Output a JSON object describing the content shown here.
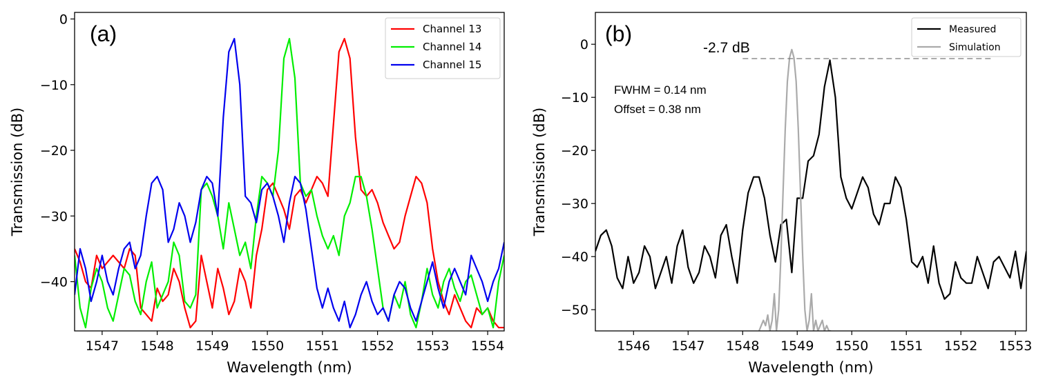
{
  "chart_data": [
    {
      "type": "line",
      "panel_label": "(a)",
      "xlabel": "Wavelength (nm)",
      "ylabel": "Transmission (dB)",
      "xlim": [
        1546.5,
        1554.3
      ],
      "ylim": [
        -47.5,
        1
      ],
      "xticks": [
        1547,
        1548,
        1549,
        1550,
        1551,
        1552,
        1553,
        1554
      ],
      "xtick_labels": [
        "1547",
        "1548",
        "1549",
        "1550",
        "1551",
        "1552",
        "1553",
        "1554"
      ],
      "yticks": [
        0,
        -10,
        -20,
        -30,
        -40
      ],
      "ytick_labels": [
        "0",
        "−10",
        "−20",
        "−30",
        "−40"
      ],
      "legend_position": "top-right",
      "series": [
        {
          "name": "Channel 13",
          "color": "#ff0000",
          "x": [
            1546.5,
            1546.6,
            1546.7,
            1546.8,
            1546.9,
            1547.0,
            1547.1,
            1547.2,
            1547.3,
            1547.4,
            1547.5,
            1547.6,
            1547.7,
            1547.8,
            1547.9,
            1548.0,
            1548.1,
            1548.2,
            1548.3,
            1548.4,
            1548.5,
            1548.6,
            1548.7,
            1548.8,
            1548.9,
            1549.0,
            1549.1,
            1549.2,
            1549.3,
            1549.4,
            1549.5,
            1549.6,
            1549.7,
            1549.8,
            1549.9,
            1550.0,
            1550.1,
            1550.2,
            1550.3,
            1550.4,
            1550.5,
            1550.6,
            1550.7,
            1550.8,
            1550.9,
            1551.0,
            1551.1,
            1551.2,
            1551.3,
            1551.4,
            1551.5,
            1551.6,
            1551.7,
            1551.8,
            1551.9,
            1552.0,
            1552.1,
            1552.2,
            1552.3,
            1552.4,
            1552.5,
            1552.6,
            1552.7,
            1552.8,
            1552.9,
            1553.0,
            1553.1,
            1553.2,
            1553.3,
            1553.4,
            1553.5,
            1553.6,
            1553.7,
            1553.8,
            1553.9,
            1554.0,
            1554.1,
            1554.2,
            1554.3
          ],
          "values": [
            -35,
            -37,
            -40,
            -41,
            -36,
            -38,
            -37,
            -36,
            -37,
            -38,
            -35,
            -36,
            -44,
            -45,
            -46,
            -41,
            -43,
            -42,
            -38,
            -40,
            -44,
            -47,
            -46,
            -36,
            -40,
            -44,
            -38,
            -41,
            -45,
            -43,
            -38,
            -40,
            -44,
            -36,
            -32,
            -26,
            -25,
            -27,
            -29,
            -32,
            -27,
            -26,
            -28,
            -26,
            -24,
            -25,
            -27,
            -16,
            -5,
            -3,
            -6,
            -18,
            -26,
            -27,
            -26,
            -28,
            -31,
            -33,
            -35,
            -34,
            -30,
            -27,
            -24,
            -25,
            -28,
            -35,
            -40,
            -43,
            -45,
            -42,
            -44,
            -46,
            -47,
            -44,
            -45,
            -44,
            -46,
            -47,
            -47
          ]
        },
        {
          "name": "Channel 14",
          "color": "#00ee00",
          "x": [
            1546.5,
            1546.6,
            1546.7,
            1546.8,
            1546.9,
            1547.0,
            1547.1,
            1547.2,
            1547.3,
            1547.4,
            1547.5,
            1547.6,
            1547.7,
            1547.8,
            1547.9,
            1548.0,
            1548.1,
            1548.2,
            1548.3,
            1548.4,
            1548.5,
            1548.6,
            1548.7,
            1548.8,
            1548.9,
            1549.0,
            1549.1,
            1549.2,
            1549.3,
            1549.4,
            1549.5,
            1549.6,
            1549.7,
            1549.8,
            1549.9,
            1550.0,
            1550.1,
            1550.2,
            1550.3,
            1550.4,
            1550.5,
            1550.6,
            1550.7,
            1550.8,
            1550.9,
            1551.0,
            1551.1,
            1551.2,
            1551.3,
            1551.4,
            1551.5,
            1551.6,
            1551.7,
            1551.8,
            1551.9,
            1552.0,
            1552.1,
            1552.2,
            1552.3,
            1552.4,
            1552.5,
            1552.6,
            1552.7,
            1552.8,
            1552.9,
            1553.0,
            1553.1,
            1553.2,
            1553.3,
            1553.4,
            1553.5,
            1553.6,
            1553.7,
            1553.8,
            1553.9,
            1554.0,
            1554.1,
            1554.2,
            1554.3
          ],
          "values": [
            -36,
            -44,
            -47,
            -41,
            -38,
            -40,
            -44,
            -46,
            -42,
            -38,
            -39,
            -43,
            -45,
            -40,
            -37,
            -44,
            -42,
            -40,
            -34,
            -36,
            -43,
            -44,
            -42,
            -26,
            -25,
            -27,
            -30,
            -35,
            -28,
            -32,
            -36,
            -34,
            -38,
            -30,
            -24,
            -25,
            -27,
            -20,
            -6,
            -3,
            -9,
            -25,
            -27,
            -26,
            -30,
            -33,
            -35,
            -33,
            -36,
            -30,
            -28,
            -24,
            -24,
            -27,
            -32,
            -38,
            -44,
            -46,
            -42,
            -44,
            -40,
            -45,
            -47,
            -43,
            -38,
            -42,
            -44,
            -40,
            -38,
            -41,
            -43,
            -40,
            -39,
            -42,
            -45,
            -44,
            -47,
            -40,
            -36
          ]
        },
        {
          "name": "Channel 15",
          "color": "#0000ee",
          "x": [
            1546.5,
            1546.6,
            1546.7,
            1546.8,
            1546.9,
            1547.0,
            1547.1,
            1547.2,
            1547.3,
            1547.4,
            1547.5,
            1547.6,
            1547.7,
            1547.8,
            1547.9,
            1548.0,
            1548.1,
            1548.2,
            1548.3,
            1548.4,
            1548.5,
            1548.6,
            1548.7,
            1548.8,
            1548.9,
            1549.0,
            1549.1,
            1549.2,
            1549.3,
            1549.4,
            1549.5,
            1549.6,
            1549.7,
            1549.8,
            1549.9,
            1550.0,
            1550.1,
            1550.2,
            1550.3,
            1550.4,
            1550.5,
            1550.6,
            1550.7,
            1550.8,
            1550.9,
            1551.0,
            1551.1,
            1551.2,
            1551.3,
            1551.4,
            1551.5,
            1551.6,
            1551.7,
            1551.8,
            1551.9,
            1552.0,
            1552.1,
            1552.2,
            1552.3,
            1552.4,
            1552.5,
            1552.6,
            1552.7,
            1552.8,
            1552.9,
            1553.0,
            1553.1,
            1553.2,
            1553.3,
            1553.4,
            1553.5,
            1553.6,
            1553.7,
            1553.8,
            1553.9,
            1554.0,
            1554.1,
            1554.2,
            1554.3
          ],
          "values": [
            -42,
            -35,
            -38,
            -43,
            -40,
            -36,
            -40,
            -42,
            -38,
            -35,
            -34,
            -38,
            -36,
            -30,
            -25,
            -24,
            -26,
            -34,
            -32,
            -28,
            -30,
            -34,
            -31,
            -26,
            -24,
            -25,
            -30,
            -15,
            -5,
            -3,
            -10,
            -27,
            -28,
            -31,
            -26,
            -25,
            -27,
            -30,
            -34,
            -28,
            -24,
            -25,
            -29,
            -35,
            -41,
            -44,
            -41,
            -44,
            -46,
            -43,
            -47,
            -45,
            -42,
            -40,
            -43,
            -45,
            -44,
            -46,
            -42,
            -40,
            -41,
            -44,
            -46,
            -43,
            -40,
            -37,
            -41,
            -44,
            -40,
            -38,
            -40,
            -42,
            -36,
            -38,
            -40,
            -43,
            -40,
            -38,
            -34
          ]
        }
      ]
    },
    {
      "type": "line",
      "panel_label": "(b)",
      "xlabel": "Wavelength (nm)",
      "ylabel": "Transmission (dB)",
      "xlim": [
        1545.3,
        1553.2
      ],
      "ylim": [
        -54,
        6
      ],
      "xticks": [
        1546,
        1547,
        1548,
        1549,
        1550,
        1551,
        1552,
        1553
      ],
      "xtick_labels": [
        "1546",
        "1547",
        "1548",
        "1549",
        "1550",
        "1551",
        "1552",
        "1553"
      ],
      "yticks": [
        0,
        -10,
        -20,
        -30,
        -40,
        -50
      ],
      "ytick_labels": [
        "0",
        "−10",
        "−20",
        "−30",
        "−40",
        "−50"
      ],
      "legend_position": "top-right",
      "annotations": {
        "peak_label": "-2.7 dB",
        "peak_level": -2.7,
        "fwhm_text": "FWHM = 0.14 nm",
        "offset_text": "Offset = 0.38 nm"
      },
      "series": [
        {
          "name": "Measured",
          "color": "#000000",
          "x": [
            1545.3,
            1545.4,
            1545.5,
            1545.6,
            1545.7,
            1545.8,
            1545.9,
            1546.0,
            1546.1,
            1546.2,
            1546.3,
            1546.4,
            1546.5,
            1546.6,
            1546.7,
            1546.8,
            1546.9,
            1547.0,
            1547.1,
            1547.2,
            1547.3,
            1547.4,
            1547.5,
            1547.6,
            1547.7,
            1547.8,
            1547.9,
            1548.0,
            1548.1,
            1548.2,
            1548.3,
            1548.4,
            1548.5,
            1548.6,
            1548.7,
            1548.8,
            1548.9,
            1549.0,
            1549.1,
            1549.2,
            1549.3,
            1549.4,
            1549.5,
            1549.6,
            1549.7,
            1549.8,
            1549.9,
            1550.0,
            1550.1,
            1550.2,
            1550.3,
            1550.4,
            1550.5,
            1550.6,
            1550.7,
            1550.8,
            1550.9,
            1551.0,
            1551.1,
            1551.2,
            1551.3,
            1551.4,
            1551.5,
            1551.6,
            1551.7,
            1551.8,
            1551.9,
            1552.0,
            1552.1,
            1552.2,
            1552.3,
            1552.4,
            1552.5,
            1552.6,
            1552.7,
            1552.8,
            1552.9,
            1553.0,
            1553.1,
            1553.2
          ],
          "values": [
            -39,
            -36,
            -35,
            -38,
            -44,
            -46,
            -40,
            -45,
            -43,
            -38,
            -40,
            -46,
            -43,
            -40,
            -45,
            -38,
            -35,
            -42,
            -45,
            -43,
            -38,
            -40,
            -44,
            -36,
            -34,
            -40,
            -45,
            -35,
            -28,
            -25,
            -25,
            -29,
            -36,
            -41,
            -34,
            -33,
            -43,
            -29,
            -29,
            -22,
            -21,
            -17,
            -8,
            -3,
            -10,
            -25,
            -29,
            -31,
            -28,
            -25,
            -27,
            -32,
            -34,
            -30,
            -30,
            -25,
            -27,
            -33,
            -41,
            -42,
            -40,
            -45,
            -38,
            -45,
            -48,
            -47,
            -41,
            -44,
            -45,
            -45,
            -40,
            -43,
            -46,
            -41,
            -40,
            -42,
            -44,
            -39,
            -46,
            -39
          ]
        },
        {
          "name": "Simulation",
          "color": "#aaaaaa",
          "x": [
            1548.3,
            1548.34,
            1548.38,
            1548.42,
            1548.46,
            1548.5,
            1548.54,
            1548.58,
            1548.62,
            1548.66,
            1548.7,
            1548.74,
            1548.78,
            1548.82,
            1548.86,
            1548.9,
            1548.94,
            1548.98,
            1549.02,
            1549.06,
            1549.1,
            1549.14,
            1549.18,
            1549.22,
            1549.26,
            1549.3,
            1549.34,
            1549.38,
            1549.42,
            1549.46,
            1549.5,
            1549.54,
            1549.58,
            1549.62
          ],
          "values": [
            -54,
            -53,
            -52,
            -53,
            -51,
            -54,
            -52,
            -47,
            -54,
            -50,
            -40,
            -28,
            -16,
            -7,
            -2.5,
            -1,
            -2.5,
            -7,
            -16,
            -28,
            -40,
            -50,
            -54,
            -52,
            -47,
            -54,
            -52,
            -54,
            -53,
            -52,
            -54,
            -53,
            -54,
            -54
          ]
        }
      ]
    }
  ]
}
